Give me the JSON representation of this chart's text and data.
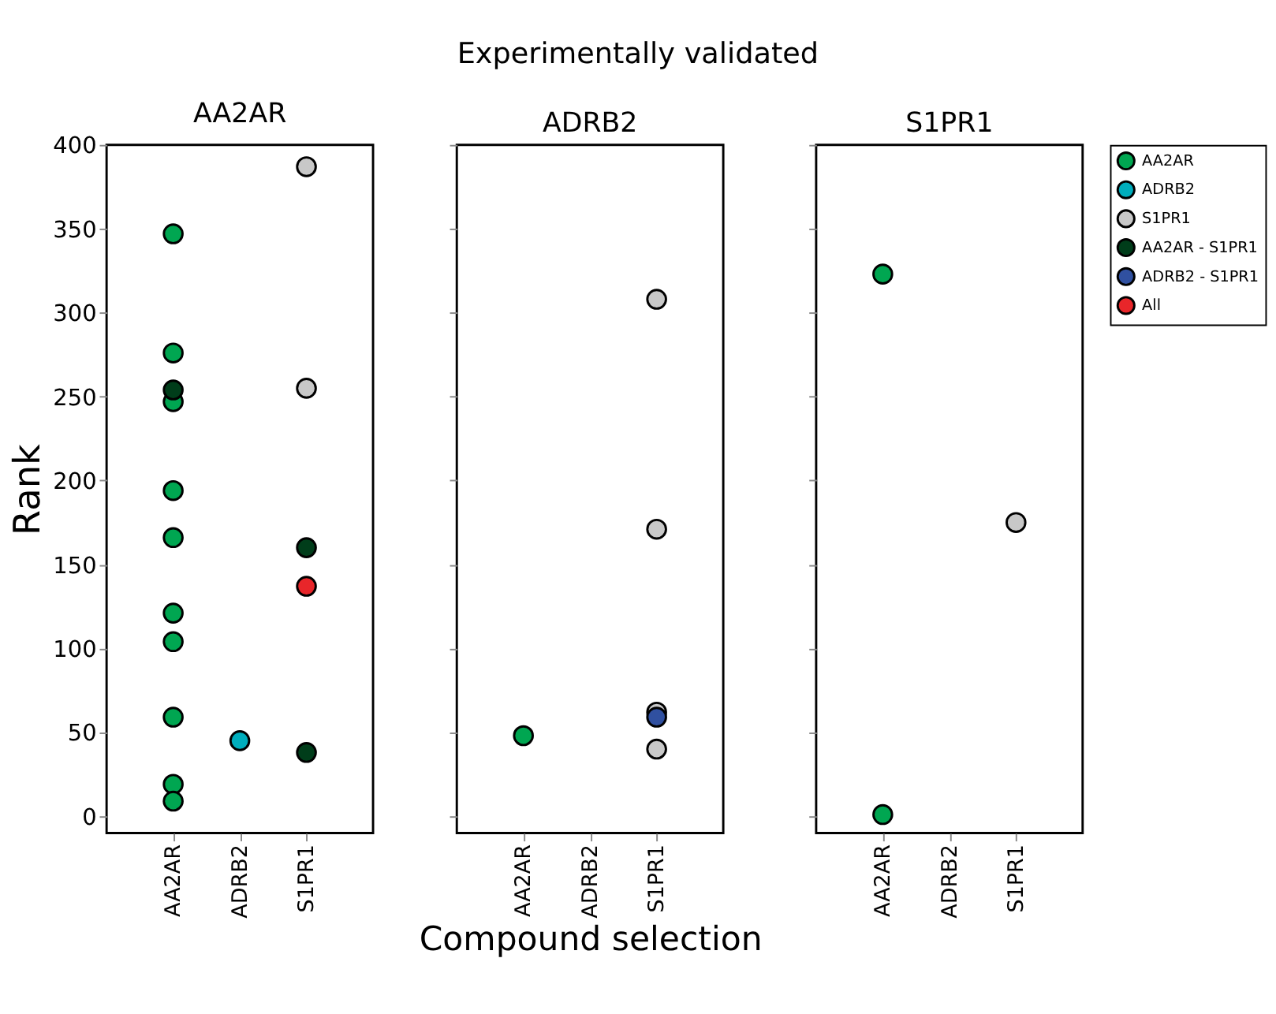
{
  "chart_data": [
    {
      "type": "scatter",
      "title": "AA2AR",
      "ylabel": "Rank",
      "categories": [
        "AA2AR",
        "ADRB2",
        "S1PR1"
      ],
      "ylim": [
        -10,
        400
      ],
      "yticks": [
        0,
        50,
        100,
        150,
        200,
        250,
        300,
        350,
        400
      ],
      "grid": false,
      "marker": "circle",
      "series": [
        {
          "color": "#00a651",
          "x": [
            "AA2AR",
            "AA2AR",
            "AA2AR",
            "AA2AR",
            "AA2AR",
            "AA2AR",
            "AA2AR",
            "AA2AR",
            "AA2AR",
            "AA2AR"
          ],
          "values": [
            347,
            276,
            247,
            194,
            166,
            121,
            104,
            59,
            19,
            9
          ]
        },
        {
          "color": "#00aebd",
          "x": [
            "ADRB2"
          ],
          "values": [
            45
          ]
        },
        {
          "color": "#c8c8c8",
          "x": [
            "S1PR1",
            "S1PR1"
          ],
          "values": [
            387,
            255
          ]
        },
        {
          "color": "#003d1a",
          "x": [
            "AA2AR",
            "S1PR1",
            "S1PR1"
          ],
          "values": [
            254,
            160,
            38
          ]
        },
        {
          "color": "#e8262a",
          "x": [
            "S1PR1"
          ],
          "values": [
            137
          ]
        }
      ]
    },
    {
      "type": "scatter",
      "title": "ADRB2",
      "xlabel": "Compound selection",
      "annotations": [
        "Experimentally validated"
      ],
      "categories": [
        "AA2AR",
        "ADRB2",
        "S1PR1"
      ],
      "ylim": [
        -10,
        400
      ],
      "yticks": [
        0,
        50,
        100,
        150,
        200,
        250,
        300,
        350,
        400
      ],
      "tick_labels": "x",
      "grid": false,
      "marker": "circle",
      "series": [
        {
          "color": "#00a651",
          "x": [
            "AA2AR"
          ],
          "values": [
            48
          ]
        },
        {
          "color": "#c8c8c8",
          "x": [
            "S1PR1",
            "S1PR1",
            "S1PR1",
            "S1PR1"
          ],
          "values": [
            308,
            171,
            62,
            40
          ]
        },
        {
          "color": "#3050a0",
          "x": [
            "S1PR1"
          ],
          "values": [
            59
          ]
        }
      ]
    },
    {
      "type": "scatter",
      "title": "S1PR1",
      "categories": [
        "AA2AR",
        "ADRB2",
        "S1PR1"
      ],
      "ylim": [
        -10,
        400
      ],
      "yticks": [
        0,
        50,
        100,
        150,
        200,
        250,
        300,
        350,
        400
      ],
      "tick_labels": "x",
      "grid": false,
      "marker": "circle",
      "legend": "right",
      "series": [
        {
          "name": "AA2AR",
          "color": "#00a651",
          "x": [
            "AA2AR",
            "AA2AR"
          ],
          "values": [
            323,
            1
          ]
        },
        {
          "name": "ADRB2",
          "color": "#00aebd",
          "values": [
            null,
            null,
            null
          ]
        },
        {
          "name": "S1PR1",
          "color": "#c8c8c8",
          "x": [
            "S1PR1"
          ],
          "values": [
            175
          ]
        },
        {
          "name": "AA2AR - S1PR1",
          "color": "#003d1a",
          "values": [
            null,
            null,
            null
          ]
        },
        {
          "name": "ADRB2 - S1PR1",
          "color": "#3050a0",
          "values": [
            null,
            null,
            null
          ]
        },
        {
          "name": "All",
          "color": "#e8262a",
          "values": [
            null,
            null,
            null
          ]
        }
      ]
    }
  ]
}
